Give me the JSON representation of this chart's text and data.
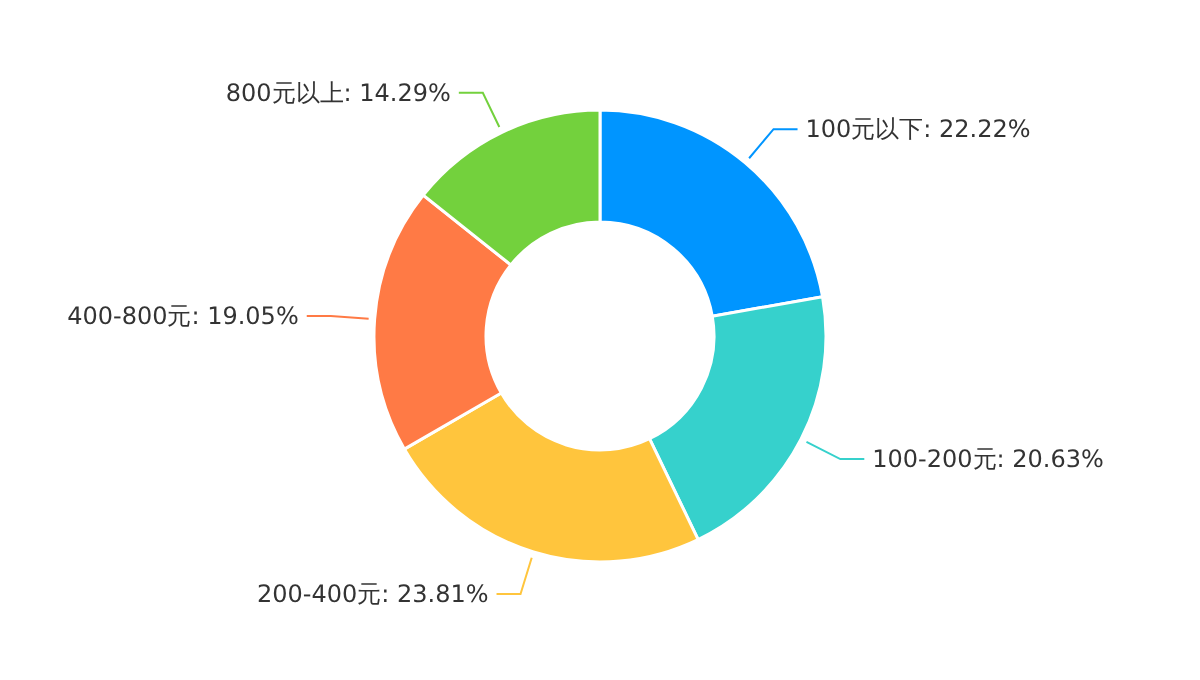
{
  "chart_data": {
    "type": "donut",
    "categories": [
      "100元以下",
      "100-200元",
      "200-400元",
      "400-800元",
      "800元以上"
    ],
    "values": [
      22.22,
      20.63,
      23.81,
      19.05,
      14.29
    ],
    "value_labels": [
      "22.22%",
      "20.63%",
      "23.81%",
      "19.05%",
      "14.29%"
    ],
    "colors": [
      "#0095ff",
      "#36d1cc",
      "#ffc53d",
      "#ff7a45",
      "#73d13d"
    ],
    "legend": false
  }
}
